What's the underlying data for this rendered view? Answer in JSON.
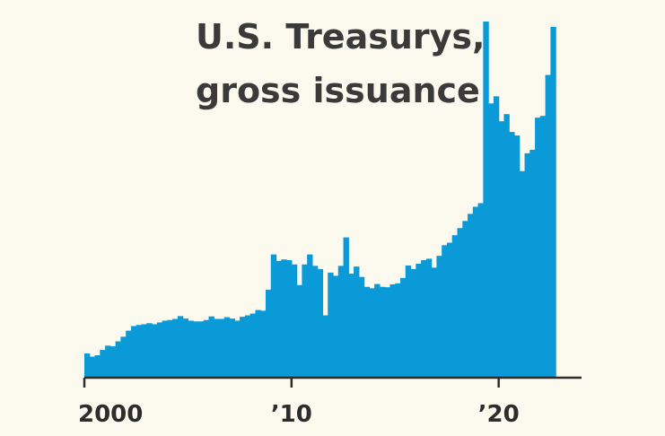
{
  "title_lines": [
    "U.S. Treasurys,",
    "gross issuance"
  ],
  "colors": {
    "background": "#fcf9ee",
    "bar": "#0b9ad8",
    "axis": "#2d2d2d",
    "text": "#3a3a3a"
  },
  "chart_data": {
    "type": "bar",
    "title": "U.S. Treasurys, gross issuance",
    "xlabel": "",
    "ylabel": "",
    "grid": false,
    "legend": "none",
    "x_start": 2000.0,
    "x_step": 0.25,
    "xlim": [
      2000.0,
      2023.75
    ],
    "ylim": [
      0,
      1
    ],
    "x_ticks": [
      {
        "value": 2000,
        "label": "2000"
      },
      {
        "value": 2010,
        "label": "’10"
      },
      {
        "value": 2020,
        "label": "’20"
      }
    ],
    "values": [
      0.068,
      0.059,
      0.063,
      0.078,
      0.09,
      0.088,
      0.102,
      0.115,
      0.132,
      0.145,
      0.148,
      0.15,
      0.153,
      0.15,
      0.155,
      0.16,
      0.162,
      0.165,
      0.173,
      0.166,
      0.16,
      0.158,
      0.158,
      0.162,
      0.172,
      0.165,
      0.165,
      0.17,
      0.166,
      0.16,
      0.171,
      0.175,
      0.18,
      0.19,
      0.188,
      0.247,
      0.346,
      0.328,
      0.332,
      0.33,
      0.318,
      0.26,
      0.318,
      0.346,
      0.314,
      0.305,
      0.175,
      0.295,
      0.286,
      0.314,
      0.394,
      0.292,
      0.312,
      0.283,
      0.255,
      0.251,
      0.263,
      0.255,
      0.254,
      0.262,
      0.265,
      0.28,
      0.315,
      0.305,
      0.32,
      0.33,
      0.334,
      0.309,
      0.342,
      0.372,
      0.379,
      0.4,
      0.42,
      0.44,
      0.46,
      0.48,
      0.49,
      1.0,
      0.77,
      0.79,
      0.72,
      0.74,
      0.69,
      0.68,
      0.58,
      0.63,
      0.64,
      0.73,
      0.735,
      0.85,
      0.985
    ]
  }
}
